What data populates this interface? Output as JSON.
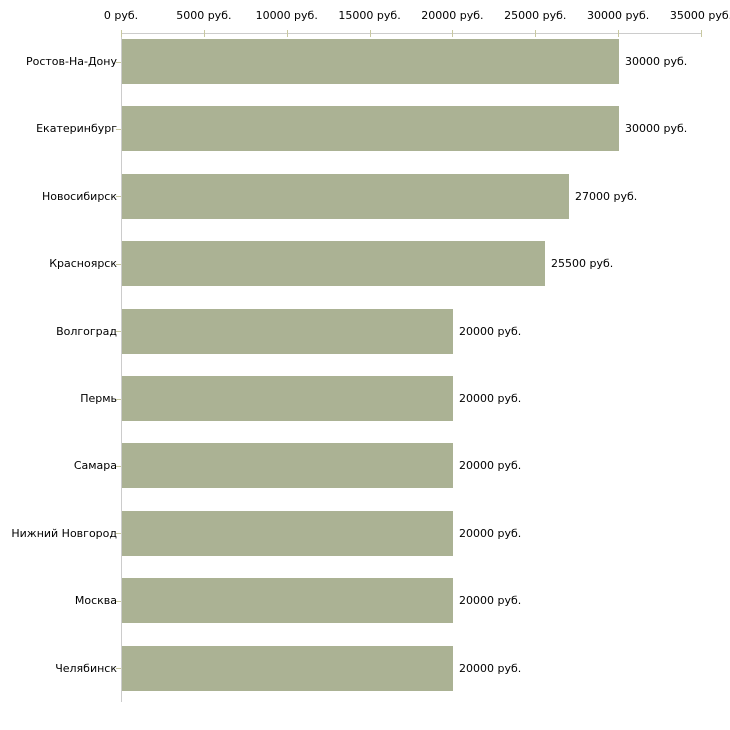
{
  "chart_data": {
    "type": "bar",
    "orientation": "horizontal",
    "title": "",
    "xlabel": "",
    "ylabel": "",
    "categories": [
      "Ростов-На-Дону",
      "Екатеринбург",
      "Новосибирск",
      "Красноярск",
      "Волгоград",
      "Пермь",
      "Самара",
      "Нижний Новгород",
      "Москва",
      "Челябинск"
    ],
    "values": [
      30000,
      30000,
      27000,
      25500,
      20000,
      20000,
      20000,
      20000,
      20000,
      20000
    ],
    "value_labels": [
      "30000 руб.",
      "30000 руб.",
      "27000 руб.",
      "25500 руб.",
      "20000 руб.",
      "20000 руб.",
      "20000 руб.",
      "20000 руб.",
      "20000 руб.",
      "20000 руб."
    ],
    "x_axis": {
      "position": "top",
      "min": 0,
      "max": 35000,
      "tick_step": 5000,
      "tick_labels": [
        "0 руб.",
        "5000 руб.",
        "10000 руб.",
        "15000 руб.",
        "20000 руб.",
        "25000 руб.",
        "30000 руб.",
        "35000 руб."
      ]
    },
    "legend": "none",
    "grid": "off",
    "colors": {
      "bar": "#abb294",
      "axis_line": "#cccccc",
      "tick_mark": "#c8c8a0",
      "text": "#000000",
      "background": "#ffffff"
    }
  }
}
